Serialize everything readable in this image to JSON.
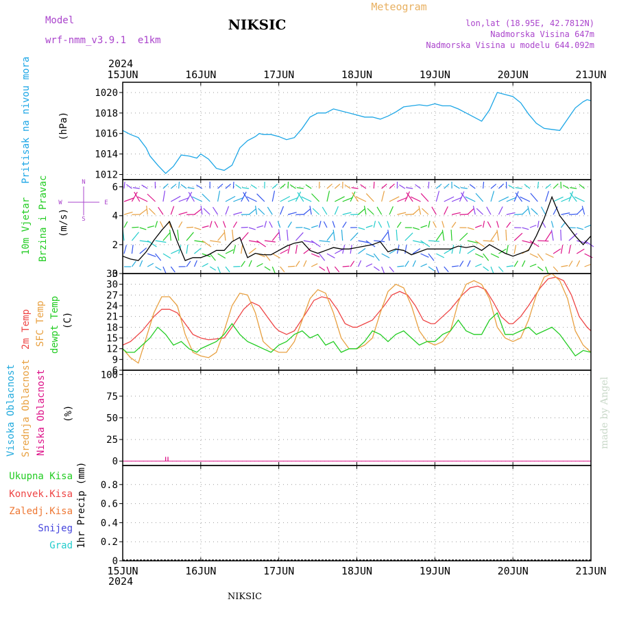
{
  "header": {
    "model_label": "Model",
    "model_name": "wrf-nmm_v3.9.1  e1km",
    "station": "NIKSIC",
    "product": "Meteogram",
    "coords": "lon,lat (18.95E, 42.7812N)",
    "elevation": "Nadmorska Visina 647m",
    "model_elevation": "Nadmorska Visina u modelu 644.092m",
    "footer_station": "NIKSIC",
    "credit": "made by Angel"
  },
  "colors": {
    "pressure": "#1ca6e6",
    "t2m": "#ee4444",
    "tsfc": "#e8a040",
    "dewpt": "#22cc22",
    "high_cloud": "#22aadd",
    "mid_cloud": "#e8a040",
    "low_cloud": "#dd1188",
    "precip_total": "#22cc22",
    "precip_conv": "#ee4444",
    "precip_frz": "#ee7733",
    "snow": "#4444dd",
    "hail": "#22cccc",
    "title_purple": "#aa44cc",
    "product_orange": "#e8b060"
  },
  "chart_data": [
    {
      "id": "pressure",
      "type": "line",
      "ylabel": "Pritisak na nivou mora",
      "unit": "(hPa)",
      "ylim": [
        1011.5,
        1021
      ],
      "yticks": [
        1012,
        1014,
        1016,
        1018,
        1020
      ],
      "grid": true,
      "series": [
        {
          "color_key": "pressure",
          "x": [
            0,
            0.1,
            0.2,
            0.3,
            0.35,
            0.45,
            0.55,
            0.65,
            0.75,
            0.85,
            0.95,
            1.0,
            1.1,
            1.2,
            1.3,
            1.4,
            1.5,
            1.6,
            1.7,
            1.75,
            1.8,
            1.9,
            2.0,
            2.1,
            2.2,
            2.3,
            2.4,
            2.5,
            2.6,
            2.7,
            2.8,
            2.9,
            3.0,
            3.1,
            3.2,
            3.3,
            3.4,
            3.5,
            3.6,
            3.7,
            3.8,
            3.9,
            4.0,
            4.1,
            4.2,
            4.3,
            4.4,
            4.5,
            4.6,
            4.7,
            4.8,
            4.9,
            5.0,
            5.1,
            5.2,
            5.3,
            5.4,
            5.5,
            5.6,
            5.7,
            5.8,
            5.9,
            5.95,
            6.0
          ],
          "y": [
            1016.3,
            1015.9,
            1015.6,
            1014.6,
            1013.8,
            1012.9,
            1012.1,
            1012.8,
            1013.9,
            1013.8,
            1013.6,
            1014.0,
            1013.5,
            1012.6,
            1012.4,
            1012.9,
            1014.6,
            1015.3,
            1015.7,
            1016.0,
            1015.9,
            1015.9,
            1015.7,
            1015.4,
            1015.6,
            1016.5,
            1017.6,
            1018.0,
            1018.0,
            1018.4,
            1018.2,
            1018.0,
            1017.8,
            1017.6,
            1017.6,
            1017.4,
            1017.7,
            1018.1,
            1018.6,
            1018.7,
            1018.8,
            1018.7,
            1018.9,
            1018.7,
            1018.7,
            1018.4,
            1018.0,
            1017.6,
            1017.2,
            1018.3,
            1020.0,
            1019.8,
            1019.6,
            1019.0,
            1017.9,
            1017.0,
            1016.5,
            1016.4,
            1016.3,
            1017.4,
            1018.5,
            1019.1,
            1019.3,
            1019.2
          ]
        }
      ]
    },
    {
      "id": "wind",
      "type": "line",
      "ylabel": "10m Vjetar",
      "ylabel2": "Brzina i Pravac",
      "unit": "(m/s)",
      "ylim": [
        0,
        6.5
      ],
      "yticks": [
        0,
        2,
        4,
        6
      ],
      "compass": {
        "n": "N",
        "s": "S",
        "w": "W",
        "e": "E"
      },
      "series": [
        {
          "name": "speed",
          "color": "#000000",
          "x": [
            0,
            0.1,
            0.2,
            0.3,
            0.4,
            0.5,
            0.6,
            0.7,
            0.8,
            0.9,
            1.0,
            1.1,
            1.2,
            1.3,
            1.4,
            1.5,
            1.6,
            1.7,
            1.8,
            1.9,
            2.0,
            2.1,
            2.2,
            2.3,
            2.4,
            2.5,
            2.6,
            2.7,
            2.8,
            2.9,
            3.0,
            3.1,
            3.2,
            3.3,
            3.4,
            3.5,
            3.6,
            3.7,
            3.8,
            3.9,
            4.0,
            4.1,
            4.2,
            4.3,
            4.4,
            4.5,
            4.6,
            4.7,
            4.8,
            4.9,
            5.0,
            5.1,
            5.2,
            5.3,
            5.4,
            5.5,
            5.6,
            5.7,
            5.8,
            5.9,
            6.0
          ],
          "y": [
            1.2,
            1.0,
            0.9,
            1.5,
            2.3,
            3.0,
            3.6,
            2.2,
            0.9,
            1.1,
            1.1,
            1.3,
            1.6,
            1.6,
            2.2,
            2.5,
            1.1,
            1.4,
            1.3,
            1.3,
            1.6,
            1.9,
            2.1,
            2.2,
            1.6,
            1.4,
            1.6,
            1.8,
            1.7,
            1.7,
            1.8,
            1.9,
            2.0,
            2.2,
            1.5,
            1.7,
            1.6,
            1.3,
            1.5,
            1.7,
            1.7,
            1.7,
            1.7,
            1.9,
            1.8,
            1.9,
            1.6,
            2.0,
            1.7,
            1.4,
            1.2,
            1.4,
            1.6,
            2.6,
            3.8,
            5.3,
            4.0,
            3.3,
            2.6,
            2.0,
            2.6
          ]
        }
      ]
    },
    {
      "id": "temperature",
      "type": "line",
      "ylabel": "2m Temp",
      "ylabel2": "SFC Temp",
      "ylabel3": "dewpt Temp",
      "unit": "(C)",
      "ylim": [
        6,
        33
      ],
      "yticks": [
        6,
        9,
        12,
        15,
        18,
        21,
        24,
        27,
        30,
        33
      ],
      "series": [
        {
          "name": "2m Temp",
          "color_key": "t2m",
          "x": [
            0,
            0.1,
            0.25,
            0.4,
            0.5,
            0.6,
            0.7,
            0.8,
            0.9,
            1.0,
            1.1,
            1.3,
            1.4,
            1.55,
            1.65,
            1.75,
            1.85,
            1.95,
            2.0,
            2.1,
            2.2,
            2.35,
            2.45,
            2.55,
            2.65,
            2.75,
            2.85,
            2.95,
            3.0,
            3.1,
            3.2,
            3.35,
            3.45,
            3.55,
            3.65,
            3.75,
            3.85,
            3.95,
            4.0,
            4.1,
            4.2,
            4.35,
            4.45,
            4.55,
            4.65,
            4.75,
            4.85,
            4.95,
            5.0,
            5.1,
            5.2,
            5.35,
            5.45,
            5.55,
            5.65,
            5.75,
            5.85,
            5.95,
            6.0
          ],
          "y": [
            13,
            14,
            17,
            21,
            23,
            23,
            22,
            19,
            16,
            15,
            14.5,
            15,
            18,
            23,
            25,
            24,
            21,
            18,
            17,
            16,
            17,
            22,
            25.5,
            26.5,
            26,
            23,
            19,
            18,
            18,
            19,
            20,
            24,
            27,
            28,
            27,
            24,
            20,
            19,
            19,
            21,
            23,
            27,
            29,
            29.5,
            28.5,
            25,
            21,
            19,
            19,
            21,
            24,
            29,
            31.5,
            32,
            31,
            27,
            21,
            18,
            17
          ]
        },
        {
          "name": "SFC Temp",
          "color_key": "tsfc",
          "x": [
            0,
            0.1,
            0.2,
            0.3,
            0.4,
            0.5,
            0.6,
            0.7,
            0.8,
            0.9,
            1.0,
            1.1,
            1.2,
            1.3,
            1.4,
            1.5,
            1.6,
            1.7,
            1.8,
            1.9,
            2.0,
            2.1,
            2.2,
            2.3,
            2.4,
            2.5,
            2.6,
            2.7,
            2.8,
            2.9,
            3.0,
            3.1,
            3.2,
            3.3,
            3.4,
            3.5,
            3.6,
            3.7,
            3.8,
            3.9,
            4.0,
            4.1,
            4.2,
            4.3,
            4.4,
            4.5,
            4.6,
            4.7,
            4.8,
            4.9,
            5.0,
            5.1,
            5.2,
            5.3,
            5.4,
            5.5,
            5.6,
            5.7,
            5.8,
            5.9,
            6.0
          ],
          "y": [
            12,
            9.5,
            8,
            15,
            22,
            26.5,
            26.5,
            24,
            16,
            11,
            10,
            9.5,
            11,
            17,
            24,
            27.5,
            27,
            22,
            14,
            12,
            11,
            11,
            14,
            20,
            26,
            28.5,
            27.5,
            22,
            15,
            12,
            12,
            13,
            15,
            22,
            28,
            30,
            29,
            24,
            17,
            14,
            13,
            14,
            17,
            25,
            30,
            31,
            30,
            26,
            18,
            15,
            14,
            15,
            20,
            27,
            32,
            33,
            31,
            26,
            17,
            13,
            11
          ]
        },
        {
          "name": "dewpt Temp",
          "color_key": "dewpt",
          "x": [
            0,
            0.05,
            0.15,
            0.25,
            0.35,
            0.45,
            0.55,
            0.65,
            0.75,
            0.85,
            0.95,
            1.0,
            1.1,
            1.2,
            1.3,
            1.4,
            1.5,
            1.6,
            1.7,
            1.8,
            1.9,
            2.0,
            2.1,
            2.2,
            2.3,
            2.4,
            2.5,
            2.6,
            2.7,
            2.8,
            2.9,
            3.0,
            3.1,
            3.2,
            3.3,
            3.4,
            3.5,
            3.6,
            3.7,
            3.8,
            3.9,
            4.0,
            4.1,
            4.2,
            4.3,
            4.4,
            4.5,
            4.6,
            4.7,
            4.8,
            4.9,
            5.0,
            5.1,
            5.2,
            5.3,
            5.4,
            5.5,
            5.6,
            5.7,
            5.8,
            5.9,
            6.0
          ],
          "y": [
            12,
            11,
            11,
            13,
            15,
            18,
            16,
            13,
            14,
            12,
            11,
            12,
            13,
            14,
            16,
            19,
            16,
            14,
            13,
            12,
            11,
            13,
            14,
            16,
            17,
            15,
            16,
            13,
            14,
            11,
            12,
            12,
            14,
            17,
            16,
            14,
            16,
            17,
            15,
            13,
            14,
            14,
            16,
            17,
            20,
            17,
            16,
            16,
            20,
            22,
            16,
            16,
            17,
            18,
            16,
            17,
            18,
            16,
            13,
            10,
            11.5,
            11
          ]
        }
      ]
    },
    {
      "id": "cloud",
      "type": "line",
      "ylabel": "Visoka Oblacnost",
      "ylabel2": "Srednja Oblacnost",
      "ylabel3": "Niska Oblacnost",
      "unit": "(%)",
      "ylim": [
        -5,
        105
      ],
      "yticks": [
        0,
        25,
        50,
        75,
        100
      ],
      "bars": [
        {
          "x": 0.55,
          "y": 5
        },
        {
          "x": 0.58,
          "y": 5
        }
      ]
    },
    {
      "id": "precip",
      "type": "line",
      "ylabel": "1hr Precip (mm)",
      "ylim": [
        0,
        1.0
      ],
      "yticks": [
        0,
        0.2,
        0.4,
        0.6,
        0.8
      ],
      "legend": [
        "Ukupna Kisa",
        "Konvek.Kisa",
        "Zaledj.Kisa",
        "Snijeg",
        "Grad"
      ]
    }
  ],
  "xaxis": {
    "year": "2024",
    "ticks": [
      "15JUN",
      "16JUN",
      "17JUN",
      "18JUN",
      "19JUN",
      "20JUN",
      "21JUN"
    ]
  }
}
